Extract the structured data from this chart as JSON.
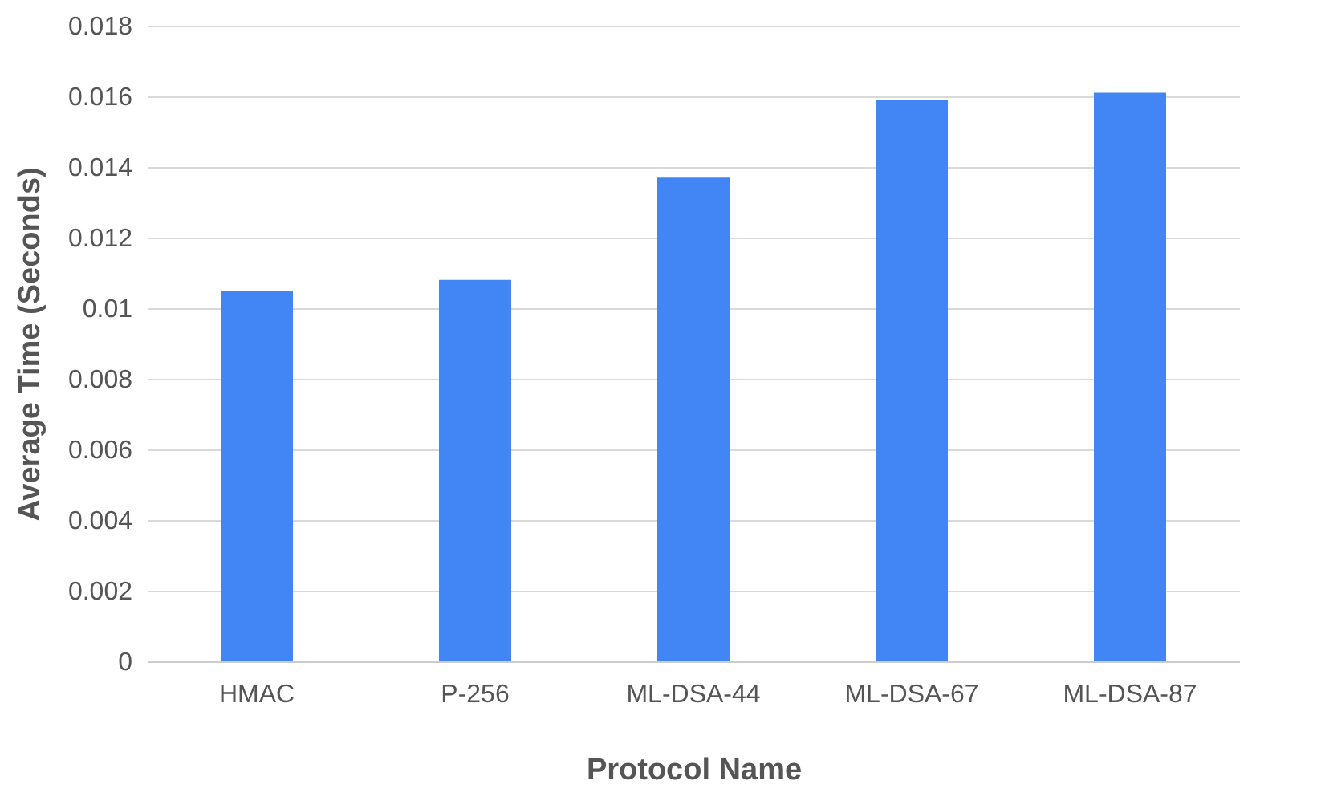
{
  "chart_data": {
    "type": "bar",
    "xlabel": "Protocol Name",
    "ylabel": "Average Time (Seconds)",
    "categories": [
      "HMAC",
      "P-256",
      "ML-DSA-44",
      "ML-DSA-67",
      "ML-DSA-87"
    ],
    "values": [
      0.0105,
      0.0108,
      0.0137,
      0.0159,
      0.0161
    ],
    "color": "#4285f4",
    "ylim": [
      0,
      0.018
    ],
    "yticks": [
      0,
      0.002,
      0.004,
      0.006,
      0.008,
      0.01,
      0.012,
      0.014,
      0.016,
      0.018
    ],
    "grid": "y"
  }
}
